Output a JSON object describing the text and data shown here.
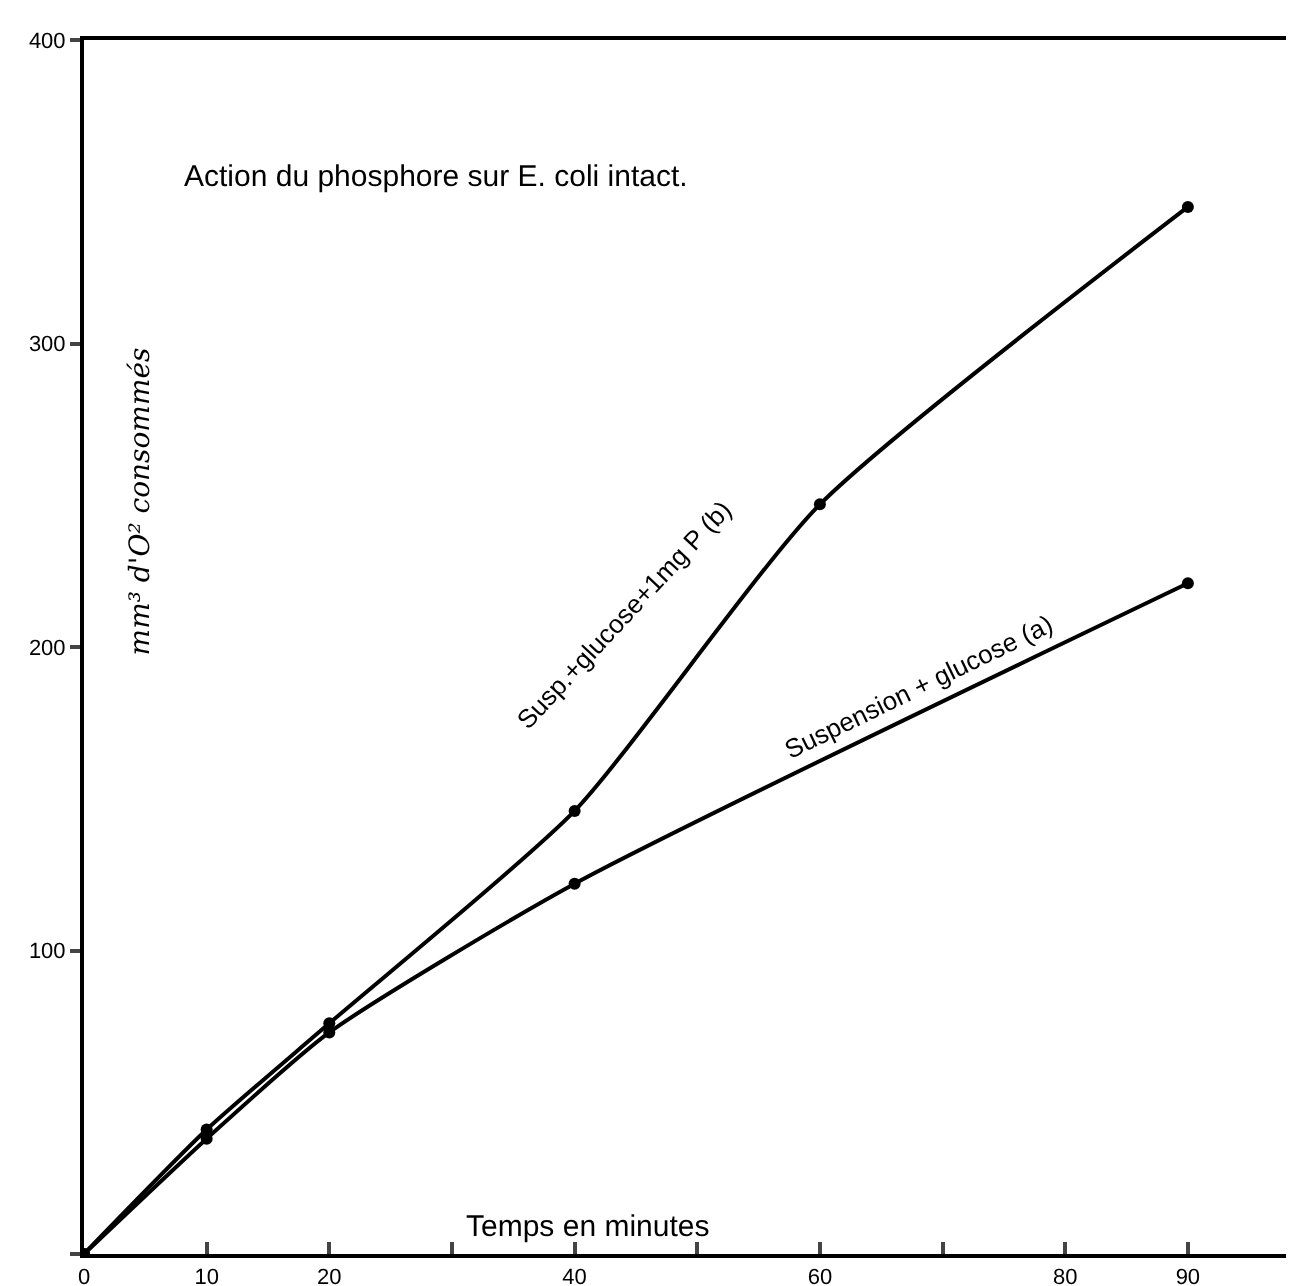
{
  "chart_data": {
    "type": "line",
    "title": "Action du phosphore sur E. coli intact.",
    "xlabel": "Temps en minutes",
    "ylabel": "mm³ d'O² consommés",
    "x": [
      0,
      10,
      20,
      40,
      60,
      90
    ],
    "series": [
      {
        "name": "Susp.+glucose+1mg P (b)",
        "color": "#000000",
        "values": [
          0,
          41,
          76,
          146,
          247,
          345
        ]
      },
      {
        "name": "Suspension + glucose (a)",
        "color": "#000000",
        "x": [
          0,
          10,
          20,
          40,
          90
        ],
        "values": [
          0,
          38,
          73,
          122,
          221
        ]
      }
    ],
    "xlim": [
      0,
      98
    ],
    "xticks": [
      0,
      10,
      20,
      {
        "value": 30,
        "label": null
      },
      40,
      {
        "value": 50,
        "label": null
      },
      60,
      {
        "value": 70,
        "label": null
      },
      80,
      90
    ],
    "ylim": [
      0,
      400
    ],
    "yticks": [
      {
        "value": 0,
        "label": null
      },
      100,
      200,
      300,
      400
    ],
    "grid": false,
    "legend": false,
    "marker": "circle",
    "line_style": "solid"
  }
}
